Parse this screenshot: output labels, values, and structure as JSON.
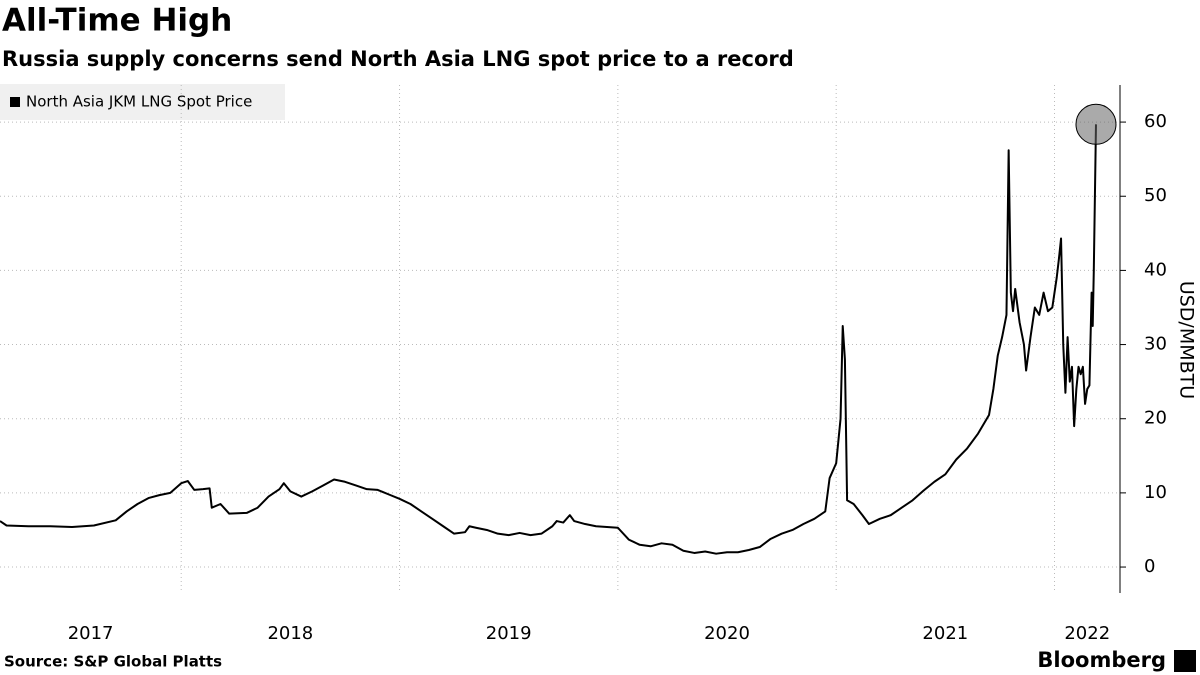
{
  "chart_data": {
    "type": "line",
    "title": "All-Time High",
    "subtitle": "Russia supply concerns send North Asia LNG spot price to a record",
    "y_label": "USD/MMBTU",
    "source": "Source: S&P Global Platts",
    "brand": "Bloomberg",
    "legend": "top-left",
    "grid": true,
    "y_axis_side": "right",
    "xlim": [
      2017.17,
      2022.3
    ],
    "xticks": [
      2017,
      2018,
      2019,
      2020,
      2021,
      2022
    ],
    "ylim": [
      -3.5,
      65
    ],
    "yticks": [
      0,
      10,
      20,
      30,
      40,
      50,
      60
    ],
    "x": [
      2017.17,
      2017.2,
      2017.3,
      2017.4,
      2017.5,
      2017.6,
      2017.7,
      2017.75,
      2017.8,
      2017.85,
      2017.9,
      2017.95,
      2018.0,
      2018.03,
      2018.06,
      2018.1,
      2018.13,
      2018.14,
      2018.18,
      2018.22,
      2018.3,
      2018.35,
      2018.4,
      2018.45,
      2018.47,
      2018.5,
      2018.55,
      2018.6,
      2018.65,
      2018.7,
      2018.75,
      2018.8,
      2018.85,
      2018.9,
      2018.95,
      2019.0,
      2019.05,
      2019.1,
      2019.15,
      2019.2,
      2019.25,
      2019.3,
      2019.32,
      2019.35,
      2019.4,
      2019.45,
      2019.5,
      2019.55,
      2019.6,
      2019.65,
      2019.7,
      2019.72,
      2019.75,
      2019.78,
      2019.8,
      2019.85,
      2019.9,
      2019.95,
      2020.0,
      2020.05,
      2020.1,
      2020.15,
      2020.2,
      2020.25,
      2020.3,
      2020.35,
      2020.4,
      2020.45,
      2020.5,
      2020.55,
      2020.6,
      2020.65,
      2020.7,
      2020.75,
      2020.8,
      2020.85,
      2020.9,
      2020.95,
      2020.97,
      2021.0,
      2021.02,
      2021.03,
      2021.04,
      2021.05,
      2021.08,
      2021.12,
      2021.15,
      2021.2,
      2021.25,
      2021.3,
      2021.35,
      2021.4,
      2021.45,
      2021.5,
      2021.55,
      2021.6,
      2021.65,
      2021.7,
      2021.72,
      2021.74,
      2021.76,
      2021.78,
      2021.79,
      2021.8,
      2021.81,
      2021.82,
      2021.84,
      2021.86,
      2021.87,
      2021.89,
      2021.91,
      2021.93,
      2021.95,
      2021.97,
      2021.99,
      2022.01,
      2022.02,
      2022.03,
      2022.04,
      2022.05,
      2022.06,
      2022.07,
      2022.08,
      2022.09,
      2022.1,
      2022.11,
      2022.12,
      2022.13,
      2022.14,
      2022.15,
      2022.16,
      2022.17,
      2022.175,
      2022.18,
      2022.19
    ],
    "series": [
      {
        "name": "North Asia JKM LNG Spot Price",
        "color": "#000000",
        "values": [
          6.2,
          5.6,
          5.5,
          5.5,
          5.4,
          5.6,
          6.3,
          7.5,
          8.5,
          9.3,
          9.7,
          10.0,
          11.3,
          11.6,
          10.4,
          10.5,
          10.6,
          8.0,
          8.5,
          7.2,
          7.3,
          8.0,
          9.5,
          10.5,
          11.3,
          10.2,
          9.5,
          10.2,
          11.0,
          11.8,
          11.5,
          11.0,
          10.5,
          10.4,
          9.8,
          9.2,
          8.5,
          7.5,
          6.5,
          5.5,
          4.5,
          4.7,
          5.5,
          5.3,
          5.0,
          4.5,
          4.3,
          4.6,
          4.3,
          4.5,
          5.5,
          6.2,
          6.0,
          7.0,
          6.2,
          5.8,
          5.5,
          5.4,
          5.3,
          3.7,
          3.0,
          2.8,
          3.2,
          3.0,
          2.2,
          1.9,
          2.1,
          1.8,
          2.0,
          2.0,
          2.3,
          2.7,
          3.8,
          4.5,
          5.0,
          5.8,
          6.5,
          7.5,
          12,
          14,
          20,
          32.5,
          28,
          9.0,
          8.5,
          7.0,
          5.8,
          6.5,
          7.0,
          8.0,
          9.0,
          10.3,
          11.5,
          12.5,
          14.5,
          16.0,
          18.0,
          20.5,
          24,
          28.5,
          31,
          34,
          56.2,
          37,
          34.5,
          37.5,
          33,
          30,
          26.5,
          31,
          35,
          34,
          37,
          34.5,
          35,
          39,
          41.5,
          44.3,
          30,
          23.5,
          31,
          25,
          27,
          19,
          24,
          27,
          26,
          27,
          22,
          24,
          24.5,
          37,
          32.5,
          40,
          59.7
        ]
      }
    ]
  }
}
